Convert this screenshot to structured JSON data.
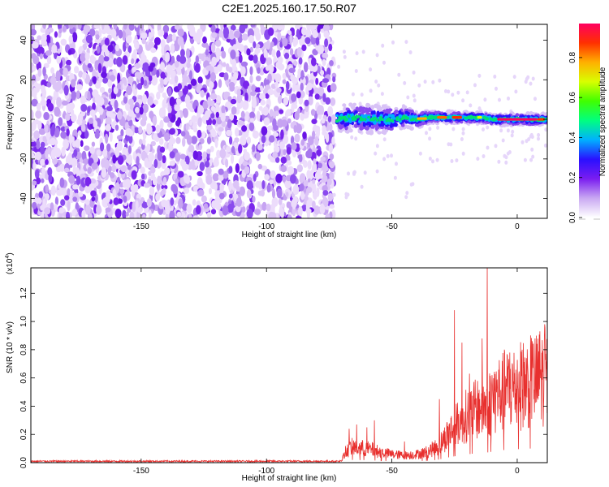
{
  "title": "C2E1.2025.160.17.50.R07",
  "chart_data": [
    {
      "type": "heatmap",
      "xlabel": "Height of straight line (km)",
      "ylabel": "Frequency (Hz)",
      "xlim": [
        -194,
        12
      ],
      "ylim": [
        -50,
        48
      ],
      "x_ticks": [
        -150,
        -100,
        -50,
        0
      ],
      "x_tick_labels": [
        "-150",
        "-100",
        "-50",
        "0"
      ],
      "y_ticks": [
        -40,
        -20,
        0,
        20,
        40
      ],
      "y_tick_labels": [
        "-40",
        "-20",
        "0",
        "20",
        "40"
      ],
      "noise_region_x": [
        -194,
        -73
      ],
      "signal_region_x": [
        -73,
        12
      ],
      "signal_centerline": [
        [
          -72,
          0
        ],
        [
          -65,
          1
        ],
        [
          -58,
          0
        ],
        [
          -50,
          0
        ],
        [
          -45,
          1
        ],
        [
          -40,
          0
        ],
        [
          -35,
          1
        ],
        [
          -30,
          1
        ],
        [
          -25,
          1
        ],
        [
          -20,
          1
        ],
        [
          -15,
          1
        ],
        [
          -10,
          0
        ],
        [
          -5,
          0
        ],
        [
          0,
          0
        ],
        [
          5,
          0
        ],
        [
          10,
          0
        ]
      ],
      "signal_halfwidth": [
        [
          -72,
          7
        ],
        [
          -60,
          7
        ],
        [
          -50,
          7
        ],
        [
          -42,
          5
        ],
        [
          -35,
          3
        ],
        [
          -25,
          3
        ],
        [
          -15,
          3
        ],
        [
          -5,
          3
        ],
        [
          0,
          3
        ],
        [
          10,
          3
        ]
      ],
      "colorbar": {
        "label": "Normalized spectral amplitude",
        "range": [
          0,
          0.97
        ],
        "ticks": [
          0.0,
          0.2,
          0.4,
          0.6,
          0.8
        ],
        "tick_labels": [
          "0.0",
          "0.2",
          "0.4",
          "0.6",
          "0.8"
        ],
        "colors": [
          "#ffffff",
          "#c9a8f2",
          "#7a1df0",
          "#2a10ff",
          "#00b0ff",
          "#00ff80",
          "#40ff00",
          "#d8ff00",
          "#ffb000",
          "#ff3000",
          "#ff0060"
        ]
      },
      "grid": false
    },
    {
      "type": "line",
      "xlabel": "Height of straight line (km)",
      "ylabel": "SNR (10 * v/v)",
      "y_multiplier": "(x10",
      "y_multiplier_exp": "4",
      "y_multiplier_close": ")",
      "xlim": [
        -194,
        12
      ],
      "ylim": [
        0,
        1.38
      ],
      "x_ticks": [
        -150,
        -100,
        -50,
        0
      ],
      "x_tick_labels": [
        "-150",
        "-100",
        "-50",
        "0"
      ],
      "y_ticks": [
        0.0,
        0.2,
        0.4,
        0.6,
        0.8,
        1.0,
        1.2
      ],
      "y_tick_labels": [
        "0.0",
        "0.2",
        "0.4",
        "0.6",
        "0.8",
        "1.0",
        "1.2"
      ],
      "series_color": "#e8302e",
      "baseline": 0.01,
      "envelope": [
        [
          -194,
          0.01
        ],
        [
          -70,
          0.01
        ],
        [
          -69,
          0.08
        ],
        [
          -66,
          0.13
        ],
        [
          -62,
          0.12
        ],
        [
          -58,
          0.11
        ],
        [
          -55,
          0.09
        ],
        [
          -50,
          0.07
        ],
        [
          -45,
          0.06
        ],
        [
          -40,
          0.07
        ],
        [
          -36,
          0.09
        ],
        [
          -32,
          0.13
        ],
        [
          -29,
          0.2
        ],
        [
          -27,
          0.26
        ],
        [
          -25,
          0.3
        ],
        [
          -23,
          0.34
        ],
        [
          -21,
          0.38
        ],
        [
          -18,
          0.42
        ],
        [
          -15,
          0.46
        ],
        [
          -12,
          0.48
        ],
        [
          -10,
          0.52
        ],
        [
          -8,
          0.57
        ],
        [
          -5,
          0.6
        ],
        [
          -2,
          0.62
        ],
        [
          1,
          0.64
        ],
        [
          4,
          0.66
        ],
        [
          7,
          0.68
        ],
        [
          9,
          0.7
        ],
        [
          12,
          0.72
        ]
      ],
      "spikes": [
        [
          -67,
          0.24
        ],
        [
          -64,
          0.27
        ],
        [
          -60,
          0.25
        ],
        [
          -57,
          0.3
        ],
        [
          -45,
          0.15
        ],
        [
          -31,
          0.45
        ],
        [
          -25,
          1.08
        ],
        [
          -22,
          0.85
        ],
        [
          -19,
          0.63
        ],
        [
          -14,
          0.88
        ],
        [
          -12,
          1.38
        ],
        [
          -10,
          0.62
        ],
        [
          -6,
          0.72
        ],
        [
          -3,
          0.78
        ],
        [
          2,
          0.8
        ],
        [
          6,
          0.86
        ],
        [
          9,
          0.93
        ],
        [
          11,
          0.98
        ]
      ],
      "grid": false
    }
  ]
}
